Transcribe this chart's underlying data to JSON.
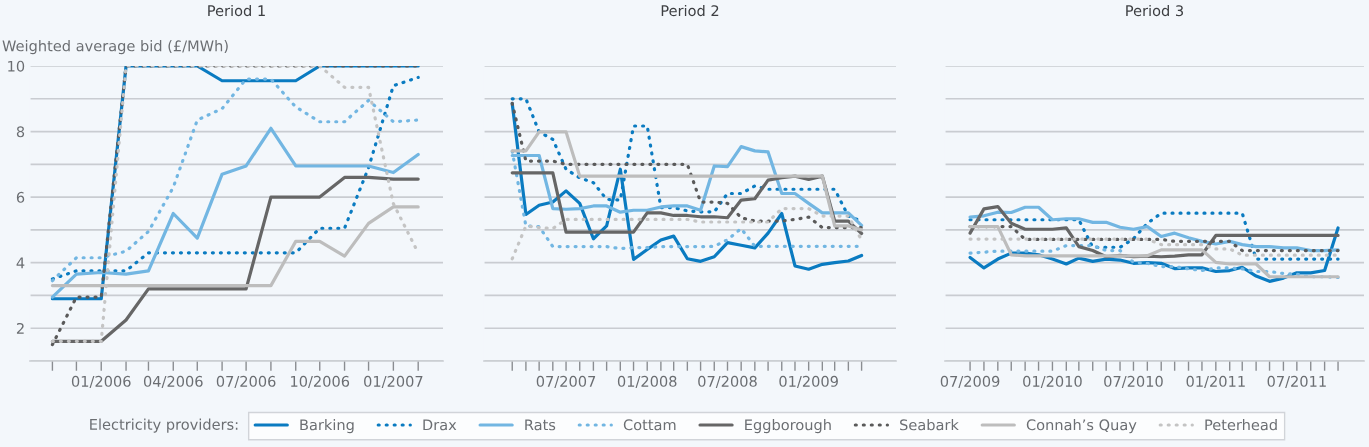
{
  "chart_data": [
    {
      "type": "line",
      "title": "Period 1",
      "ylabel": "Weighted average bid (£/MWh)",
      "legend": "bottom",
      "legend_title": "Electricity providers:",
      "grid": "y",
      "x": [
        "2005-11",
        "2005-12",
        "2006-01",
        "2006-02",
        "2006-03",
        "2006-04",
        "2006-05",
        "2006-06",
        "2006-07",
        "2006-08",
        "2006-09",
        "2006-10",
        "2006-11",
        "2006-12",
        "2007-01",
        "2007-02"
      ],
      "xlim": [
        "2005-10-04",
        "2007-03-04"
      ],
      "xticks": [
        {
          "value": "2005-11",
          "label": null
        },
        {
          "value": "2005-12",
          "label": null
        },
        {
          "value": "2006-01",
          "label": "01/2006"
        },
        {
          "value": "2006-02",
          "label": null
        },
        {
          "value": "2006-03",
          "label": null
        },
        {
          "value": "2006-04",
          "label": "04/2006"
        },
        {
          "value": "2006-05",
          "label": null
        },
        {
          "value": "2006-06",
          "label": null
        },
        {
          "value": "2006-07",
          "label": "07/2006"
        },
        {
          "value": "2006-08",
          "label": null
        },
        {
          "value": "2006-09",
          "label": null
        },
        {
          "value": "2006-10",
          "label": "10/2006"
        },
        {
          "value": "2006-11",
          "label": null
        },
        {
          "value": "2006-12",
          "label": null
        },
        {
          "value": "2007-01",
          "label": "01/2007"
        },
        {
          "value": "2007-02",
          "label": null
        }
      ],
      "ylim": [
        1,
        10
      ],
      "yticks": [
        {
          "value": 1,
          "label": null
        },
        2,
        {
          "value": 3,
          "label": null
        },
        4,
        {
          "value": 5,
          "label": null
        },
        6,
        {
          "value": 7,
          "label": null
        },
        8,
        {
          "value": 9,
          "label": null
        },
        10
      ],
      "series": [
        {
          "name": "Barking",
          "color": "#0a7bc1",
          "line_style": "solid",
          "values": [
            2.9,
            2.9,
            2.9,
            10,
            10,
            10,
            10,
            9.55,
            9.55,
            9.55,
            9.55,
            10,
            10,
            10,
            10,
            10
          ]
        },
        {
          "name": "Drax",
          "color": "#0a7bc1",
          "line_style": "dotted",
          "values": [
            3.5,
            3.75,
            3.75,
            3.75,
            4.3,
            4.3,
            4.3,
            4.3,
            4.3,
            4.3,
            4.3,
            5.05,
            5.05,
            6.9,
            9.4,
            9.65
          ]
        },
        {
          "name": "Rats",
          "color": "#72b6e2",
          "line_style": "solid",
          "values": [
            2.95,
            3.65,
            3.7,
            3.65,
            3.75,
            5.5,
            4.75,
            6.7,
            6.95,
            8.1,
            6.95,
            6.95,
            6.95,
            6.95,
            6.75,
            7.3
          ]
        },
        {
          "name": "Cottam",
          "color": "#72b6e2",
          "line_style": "dotted",
          "values": [
            3.45,
            4.15,
            4.15,
            4.35,
            4.95,
            6.3,
            8.35,
            8.7,
            9.6,
            9.6,
            8.75,
            8.3,
            8.3,
            8.95,
            8.3,
            8.35
          ]
        },
        {
          "name": "Eggborough",
          "color": "#666666",
          "line_style": "solid",
          "values": [
            1.6,
            1.6,
            1.6,
            2.25,
            3.2,
            3.2,
            3.2,
            3.2,
            3.2,
            6,
            6,
            6,
            6.6,
            6.6,
            6.55,
            6.55
          ]
        },
        {
          "name": "Seabark",
          "color": "#5a5a5a",
          "line_style": "dotted",
          "values": [
            1.5,
            2.95,
            2.95,
            10,
            10,
            10,
            10,
            10,
            10,
            10,
            10,
            10,
            10,
            10,
            10,
            10
          ]
        },
        {
          "name": "Connah’s Quay",
          "color": "#bdbdbd",
          "line_style": "solid",
          "values": [
            3.3,
            3.3,
            3.3,
            3.3,
            3.3,
            3.3,
            3.3,
            3.3,
            3.3,
            3.3,
            4.65,
            4.65,
            4.2,
            5.2,
            5.7,
            5.7
          ]
        },
        {
          "name": "Peterhead",
          "color": "#c4c4c4",
          "line_style": "dotted",
          "values": [
            1.6,
            1.6,
            1.6,
            10,
            10,
            10,
            10,
            10,
            10,
            10,
            10,
            10,
            9.35,
            9.35,
            5.8,
            4.3
          ]
        }
      ]
    },
    {
      "type": "line",
      "title": "Period 2",
      "grid": "y",
      "tick_labels": "x",
      "x": [
        "2007-03",
        "2007-04",
        "2007-05",
        "2007-06",
        "2007-07",
        "2007-08",
        "2007-09",
        "2007-10",
        "2007-11",
        "2007-12",
        "2008-01",
        "2008-02",
        "2008-03",
        "2008-04",
        "2008-05",
        "2008-06",
        "2008-07",
        "2008-08",
        "2008-09",
        "2008-10",
        "2008-11",
        "2008-12",
        "2009-01",
        "2009-02",
        "2009-03",
        "2009-04",
        "2009-05"
      ],
      "xlim": [
        "2006-12-27",
        "2009-07-18"
      ],
      "xticks": [
        {
          "value": "2007-03",
          "label": null
        },
        {
          "value": "2007-04",
          "label": null
        },
        {
          "value": "2007-05",
          "label": null
        },
        {
          "value": "2007-06",
          "label": null
        },
        {
          "value": "2007-07",
          "label": "07/2007"
        },
        {
          "value": "2007-08",
          "label": null
        },
        {
          "value": "2007-09",
          "label": null
        },
        {
          "value": "2007-10",
          "label": null
        },
        {
          "value": "2007-11",
          "label": null
        },
        {
          "value": "2007-12",
          "label": null
        },
        {
          "value": "2008-01",
          "label": "01/2008"
        },
        {
          "value": "2008-02",
          "label": null
        },
        {
          "value": "2008-03",
          "label": null
        },
        {
          "value": "2008-04",
          "label": null
        },
        {
          "value": "2008-05",
          "label": null
        },
        {
          "value": "2008-06",
          "label": null
        },
        {
          "value": "2008-07",
          "label": "07/2008"
        },
        {
          "value": "2008-08",
          "label": null
        },
        {
          "value": "2008-09",
          "label": null
        },
        {
          "value": "2008-10",
          "label": null
        },
        {
          "value": "2008-11",
          "label": null
        },
        {
          "value": "2008-12",
          "label": null
        },
        {
          "value": "2009-01",
          "label": "01/2009"
        },
        {
          "value": "2009-02",
          "label": null
        },
        {
          "value": "2009-03",
          "label": null
        },
        {
          "value": "2009-04",
          "label": null
        },
        {
          "value": "2009-05",
          "label": null
        }
      ],
      "ylim": [
        1,
        10
      ],
      "yticks": [
        {
          "value": 1,
          "label": null
        },
        2,
        {
          "value": 3,
          "label": null
        },
        4,
        {
          "value": 5,
          "label": null
        },
        6,
        {
          "value": 7,
          "label": null
        },
        8,
        {
          "value": 9,
          "label": null
        },
        10
      ],
      "series": [
        {
          "color": "#0a7bc1",
          "line_style": "solid",
          "values": [
            8.85,
            5.47,
            5.75,
            5.85,
            6.19,
            5.81,
            4.73,
            5.12,
            6.85,
            4.1,
            4.4,
            4.69,
            4.81,
            4.12,
            4.04,
            4.18,
            4.61,
            4.53,
            4.45,
            4.9,
            5.5,
            3.9,
            3.8,
            3.95,
            4.0,
            4.05,
            4.22
          ]
        },
        {
          "color": "#0a7bc1",
          "line_style": "dotted",
          "values": [
            9,
            9,
            7.99,
            7.76,
            6.85,
            6.59,
            6.44,
            5.93,
            5.91,
            8.17,
            8.17,
            5.68,
            5.68,
            5.58,
            5.55,
            5.55,
            6.11,
            6.11,
            6.34,
            6.24,
            6.24,
            6.24,
            6.24,
            6.24,
            6.24,
            5.42,
            5.27
          ]
        },
        {
          "color": "#72b6e2",
          "line_style": "solid",
          "values": [
            7.27,
            7.27,
            7.27,
            5.65,
            5.63,
            5.65,
            5.73,
            5.73,
            5.54,
            5.6,
            5.6,
            5.7,
            5.73,
            5.73,
            5.6,
            6.95,
            6.93,
            7.54,
            7.41,
            7.38,
            6.11,
            6.11,
            5.81,
            5.52,
            5.52,
            5.52,
            5.14
          ]
        },
        {
          "color": "#72b6e2",
          "line_style": "dotted",
          "values": [
            7.4,
            5.12,
            5.1,
            4.49,
            4.49,
            4.49,
            4.49,
            4.49,
            4.43,
            4.46,
            4.46,
            4.49,
            4.49,
            4.49,
            4.49,
            4.5,
            4.7,
            5.04,
            4.5,
            4.5,
            4.5,
            4.5,
            4.5,
            4.5,
            4.5,
            4.5,
            4.5
          ]
        },
        {
          "color": "#666666",
          "line_style": "solid",
          "values": [
            6.74,
            6.74,
            6.74,
            6.74,
            4.93,
            4.93,
            4.93,
            4.93,
            4.93,
            4.93,
            5.52,
            5.52,
            5.44,
            5.44,
            5.4,
            5.4,
            5.37,
            5.91,
            5.95,
            6.52,
            6.59,
            6.64,
            6.54,
            6.64,
            5.27,
            5.27,
            4.89
          ]
        },
        {
          "color": "#5a5a5a",
          "line_style": "dotted",
          "values": [
            8.86,
            7.1,
            7.1,
            7.1,
            7,
            7,
            7,
            7,
            7,
            7,
            7,
            7,
            7,
            7,
            5.85,
            5.85,
            5.81,
            5.37,
            5.27,
            5.27,
            5.27,
            5.32,
            5.39,
            5.07,
            5.07,
            5.07,
            5.07
          ]
        },
        {
          "color": "#bdbdbd",
          "line_style": "solid",
          "values": [
            7.41,
            7.41,
            7.99,
            7.99,
            7.99,
            6.64,
            6.64,
            6.64,
            6.64,
            6.64,
            6.64,
            6.64,
            6.64,
            6.64,
            6.64,
            6.64,
            6.64,
            6.64,
            6.64,
            6.64,
            6.64,
            6.64,
            6.64,
            6.64,
            5.12,
            5.12,
            5.0
          ]
        },
        {
          "color": "#c4c4c4",
          "line_style": "dotted",
          "values": [
            4.12,
            5.12,
            5.07,
            5.04,
            5.32,
            5.32,
            5.32,
            5.32,
            5.32,
            5.32,
            5.32,
            5.32,
            5.32,
            5.32,
            5.24,
            5.24,
            5.24,
            5.24,
            5.24,
            5.24,
            5.65,
            5.65,
            5.65,
            5.42,
            5.42,
            5.42,
            4.69
          ]
        }
      ]
    },
    {
      "type": "line",
      "title": "Period 3",
      "grid": "y",
      "tick_labels": "x",
      "x": [
        "2009-07",
        "2009-08",
        "2009-09",
        "2009-10",
        "2009-11",
        "2009-12",
        "2010-01",
        "2010-02",
        "2010-03",
        "2010-04",
        "2010-05",
        "2010-06",
        "2010-07",
        "2010-08",
        "2010-09",
        "2010-10",
        "2010-11",
        "2010-12",
        "2011-01",
        "2011-02",
        "2011-03",
        "2011-04",
        "2011-05",
        "2011-06",
        "2011-07",
        "2011-08",
        "2011-09",
        "2011-10"
      ],
      "xlim": [
        "2009-05-06",
        "2011-11-28"
      ],
      "xticks": [
        {
          "value": "2009-07",
          "label": "07/2009"
        },
        {
          "value": "2009-08",
          "label": null
        },
        {
          "value": "2009-09",
          "label": null
        },
        {
          "value": "2009-10",
          "label": null
        },
        {
          "value": "2009-11",
          "label": null
        },
        {
          "value": "2009-12",
          "label": null
        },
        {
          "value": "2010-01",
          "label": "01/2010"
        },
        {
          "value": "2010-02",
          "label": null
        },
        {
          "value": "2010-03",
          "label": null
        },
        {
          "value": "2010-04",
          "label": null
        },
        {
          "value": "2010-05",
          "label": null
        },
        {
          "value": "2010-06",
          "label": null
        },
        {
          "value": "2010-07",
          "label": "07/2010"
        },
        {
          "value": "2010-08",
          "label": null
        },
        {
          "value": "2010-09",
          "label": null
        },
        {
          "value": "2010-10",
          "label": null
        },
        {
          "value": "2010-11",
          "label": null
        },
        {
          "value": "2010-12",
          "label": null
        },
        {
          "value": "2011-01",
          "label": "01/2011"
        },
        {
          "value": "2011-02",
          "label": null
        },
        {
          "value": "2011-03",
          "label": null
        },
        {
          "value": "2011-04",
          "label": null
        },
        {
          "value": "2011-05",
          "label": null
        },
        {
          "value": "2011-06",
          "label": null
        },
        {
          "value": "2011-07",
          "label": "07/2011"
        },
        {
          "value": "2011-08",
          "label": null
        },
        {
          "value": "2011-09",
          "label": null
        },
        {
          "value": "2011-10",
          "label": null
        }
      ],
      "ylim": [
        1,
        10
      ],
      "yticks": [
        {
          "value": 1,
          "label": null
        },
        2,
        {
          "value": 3,
          "label": null
        },
        4,
        {
          "value": 5,
          "label": null
        },
        6,
        {
          "value": 7,
          "label": null
        },
        8,
        {
          "value": 9,
          "label": null
        },
        10
      ],
      "series": [
        {
          "color": "#0a7bc1",
          "line_style": "solid",
          "values": [
            4.16,
            3.84,
            4.11,
            4.29,
            4.29,
            4.24,
            4.11,
            3.96,
            4.14,
            4.04,
            4.11,
            4.08,
            3.98,
            4.0,
            3.98,
            3.82,
            3.84,
            3.84,
            3.73,
            3.76,
            3.86,
            3.59,
            3.43,
            3.53,
            3.69,
            3.69,
            3.76,
            5.06
          ]
        },
        {
          "color": "#0a7bc1",
          "line_style": "dotted",
          "values": [
            5.31,
            5.31,
            5.31,
            5.31,
            5.31,
            5.31,
            5.31,
            5.31,
            5.31,
            4.47,
            4.47,
            4.47,
            4.73,
            5.2,
            5.51,
            5.51,
            5.51,
            5.51,
            5.51,
            5.51,
            5.51,
            4.11,
            4.11,
            4.11,
            4.11,
            4.11,
            4.11,
            4.11
          ]
        },
        {
          "color": "#72b6e2",
          "line_style": "solid",
          "values": [
            5.39,
            5.43,
            5.54,
            5.53,
            5.69,
            5.69,
            5.31,
            5.34,
            5.34,
            5.23,
            5.23,
            5.08,
            5.02,
            5.1,
            4.8,
            4.9,
            4.76,
            4.65,
            4.57,
            4.65,
            4.55,
            4.49,
            4.49,
            4.45,
            4.45,
            4.37,
            4.37,
            4.39
          ]
        },
        {
          "color": "#72b6e2",
          "line_style": "dotted",
          "values": [
            4.29,
            4.32,
            4.35,
            4.35,
            4.35,
            4.35,
            4.35,
            4.52,
            4.52,
            4.52,
            4.37,
            4.37,
            4.01,
            3.98,
            3.88,
            3.88,
            3.81,
            3.76,
            3.84,
            3.84,
            3.81,
            3.73,
            3.73,
            3.67,
            3.65,
            3.57,
            3.57,
            3.55
          ]
        },
        {
          "color": "#666666",
          "line_style": "solid",
          "values": [
            4.9,
            5.64,
            5.71,
            5.2,
            5.02,
            5.02,
            5.02,
            5.06,
            4.49,
            4.37,
            4.18,
            4.22,
            4.18,
            4.2,
            4.18,
            4.2,
            4.24,
            4.24,
            4.83,
            4.83,
            4.83,
            4.83,
            4.83,
            4.83,
            4.83,
            4.83,
            4.83,
            4.83
          ]
        },
        {
          "color": "#5a5a5a",
          "line_style": "dotted",
          "values": [
            5.1,
            5.1,
            5.1,
            5.1,
            4.71,
            4.71,
            4.71,
            4.71,
            4.71,
            4.71,
            4.71,
            4.71,
            4.71,
            4.71,
            4.71,
            4.65,
            4.65,
            4.65,
            4.65,
            4.65,
            4.37,
            4.37,
            4.37,
            4.37,
            4.37,
            4.37,
            4.37,
            4.37
          ]
        },
        {
          "color": "#bdbdbd",
          "line_style": "solid",
          "values": [
            5.1,
            5.1,
            5.1,
            4.24,
            4.21,
            4.21,
            4.21,
            4.21,
            4.21,
            4.21,
            4.21,
            4.21,
            4.21,
            4.21,
            4.39,
            4.39,
            4.39,
            4.39,
            4.01,
            3.96,
            3.96,
            3.96,
            3.57,
            3.57,
            3.57,
            3.57,
            3.57,
            3.57
          ]
        },
        {
          "color": "#c4c4c4",
          "line_style": "dotted",
          "values": [
            4.72,
            4.72,
            4.72,
            4.72,
            4.72,
            4.72,
            4.72,
            4.72,
            4.72,
            4.72,
            4.72,
            4.72,
            4.72,
            4.72,
            4.55,
            4.55,
            4.55,
            4.55,
            4.42,
            4.42,
            4.23,
            4.23,
            4.23,
            4.23,
            4.23,
            4.23,
            4.23,
            4.23
          ]
        }
      ]
    }
  ]
}
